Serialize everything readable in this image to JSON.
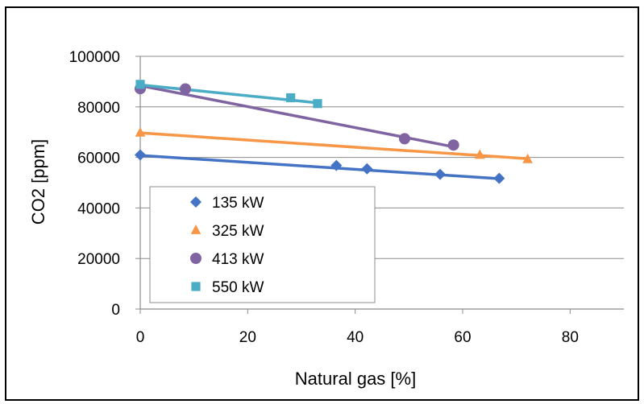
{
  "chart_data": {
    "type": "scatter",
    "title": "",
    "xlabel": "Natural gas [%]",
    "ylabel": "CO2 [ppm]",
    "xlim": [
      0,
      90
    ],
    "ylim": [
      0,
      100000
    ],
    "xticks": [
      0,
      20,
      40,
      60,
      80
    ],
    "yticks": [
      0,
      20000,
      40000,
      60000,
      80000,
      100000
    ],
    "grid": "horizontal",
    "legend_position": "lower-left inside plot",
    "series": [
      {
        "name": "135 kW",
        "marker": "diamond",
        "color": "#4472C4",
        "points": [
          [
            0,
            61000
          ],
          [
            36.5,
            56800
          ],
          [
            42.2,
            55500
          ],
          [
            55.8,
            53300
          ],
          [
            66.8,
            51700
          ]
        ],
        "trendline": [
          [
            0,
            60800
          ],
          [
            66.8,
            51600
          ]
        ]
      },
      {
        "name": "325 kW",
        "marker": "triangle",
        "color": "#F79646",
        "points": [
          [
            0,
            69800
          ],
          [
            63.2,
            61000
          ],
          [
            72.1,
            59300
          ]
        ],
        "trendline": [
          [
            0,
            69700
          ],
          [
            72.1,
            59500
          ]
        ]
      },
      {
        "name": "413 kW",
        "marker": "circle",
        "color": "#8064A2",
        "points": [
          [
            0,
            87200
          ],
          [
            8.4,
            87100
          ],
          [
            49.2,
            67400
          ],
          [
            58.3,
            64900
          ]
        ],
        "trendline": [
          [
            0,
            88400
          ],
          [
            58.3,
            64200
          ]
        ]
      },
      {
        "name": "550 kW",
        "marker": "square",
        "color": "#4BACC6",
        "points": [
          [
            0,
            88900
          ],
          [
            28.0,
            83600
          ],
          [
            33.0,
            81300
          ]
        ],
        "trendline": [
          [
            0,
            88700
          ],
          [
            33.0,
            81600
          ]
        ]
      }
    ]
  }
}
